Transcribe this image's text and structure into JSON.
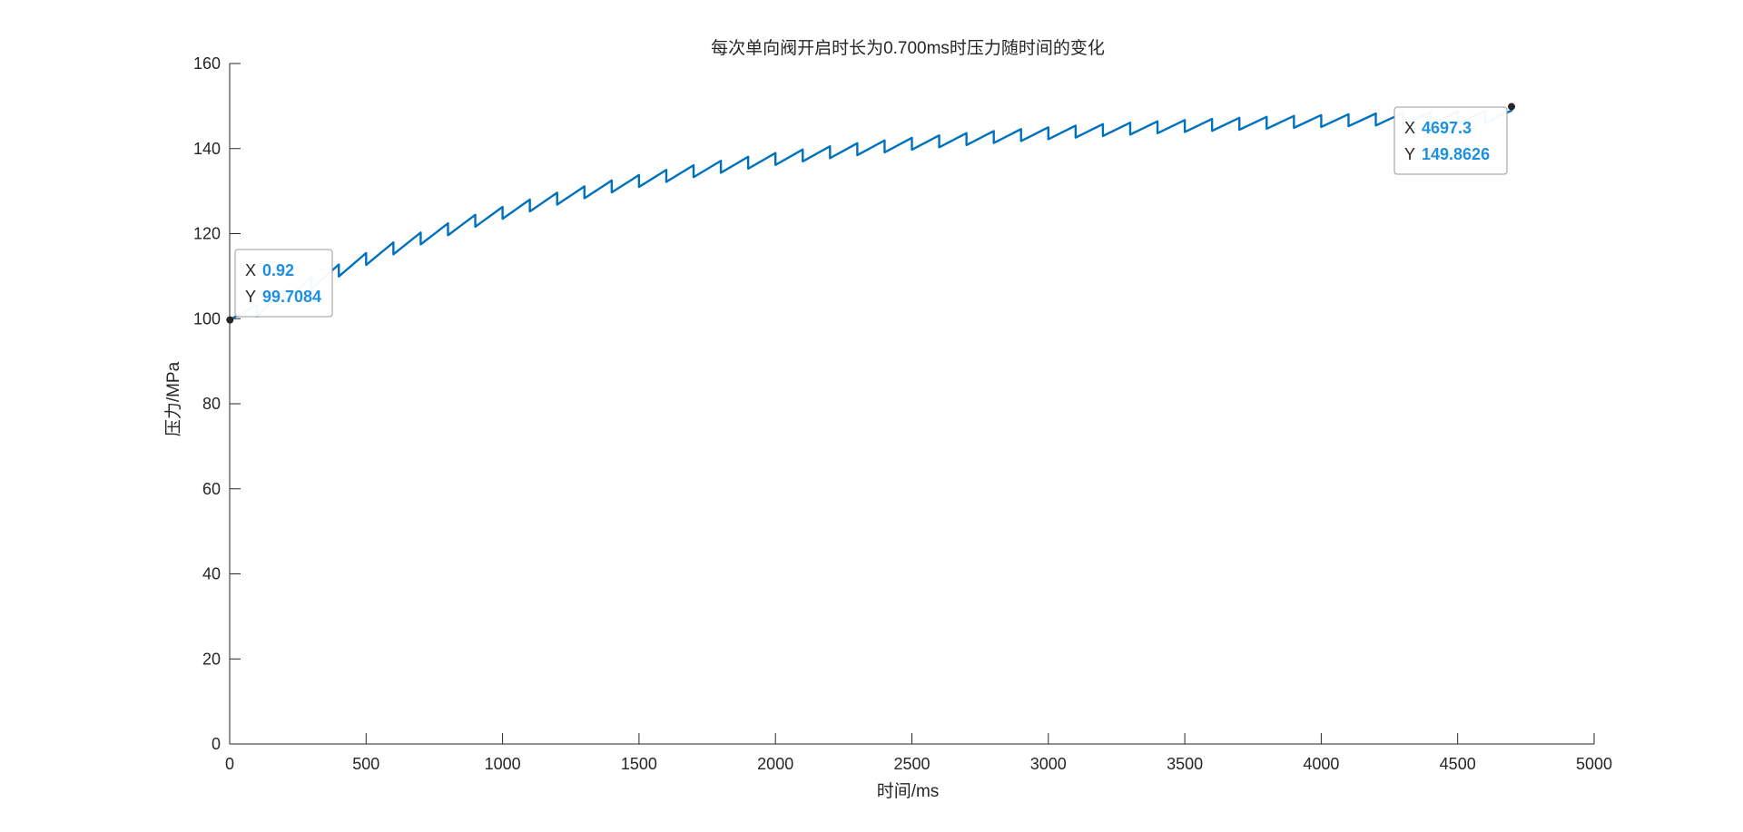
{
  "chart_data": {
    "type": "line",
    "title": "每次单向阀开启时长为0.700ms时压力随时间的变化",
    "xlabel": "时间/ms",
    "ylabel": "压力/MPa",
    "xlim": [
      0,
      5000
    ],
    "ylim": [
      0,
      160
    ],
    "xticks": [
      0,
      500,
      1000,
      1500,
      2000,
      2500,
      3000,
      3500,
      4000,
      4500,
      5000
    ],
    "yticks": [
      0,
      20,
      40,
      60,
      80,
      100,
      120,
      140,
      160
    ],
    "grid": false,
    "line_color": "#0072BD",
    "series": [
      {
        "x_start": 0.92,
        "x_end": 4697.3,
        "y_start": 99.7084,
        "y_end": 149.8626,
        "cycle_period_ms": 100,
        "drop_after_peak_MPa": 2.8
      }
    ],
    "datatips": [
      {
        "x_label": "X",
        "x_value": "0.92",
        "y_label": "Y",
        "y_value": "99.7084",
        "x": 0.92,
        "y": 99.7084
      },
      {
        "x_label": "X",
        "x_value": "4697.3",
        "y_label": "Y",
        "y_value": "149.8626",
        "x": 4697.3,
        "y": 149.8626
      }
    ],
    "datatip_value_color": "#1E90E0"
  }
}
